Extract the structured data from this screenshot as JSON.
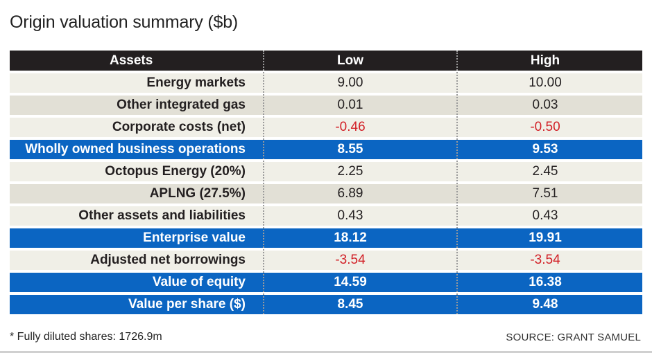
{
  "title": "Origin valuation summary ($b)",
  "chart_data": {
    "type": "table",
    "title": "Origin valuation summary ($b)",
    "columns": [
      "Assets",
      "Low",
      "High"
    ],
    "rows": [
      {
        "label": "Energy markets",
        "low": "9.00",
        "high": "10.00",
        "style": "shade-a"
      },
      {
        "label": "Other integrated gas",
        "low": "0.01",
        "high": "0.03",
        "style": "shade-b"
      },
      {
        "label": "Corporate costs (net)",
        "low": "-0.46",
        "high": "-0.50",
        "style": "shade-a"
      },
      {
        "label": "Wholly owned business operations",
        "low": "8.55",
        "high": "9.53",
        "style": "total"
      },
      {
        "label": "Octopus Energy (20%)",
        "low": "2.25",
        "high": "2.45",
        "style": "shade-a"
      },
      {
        "label": "APLNG (27.5%)",
        "low": "6.89",
        "high": "7.51",
        "style": "shade-b"
      },
      {
        "label": "Other assets and liabilities",
        "low": "0.43",
        "high": "0.43",
        "style": "shade-a"
      },
      {
        "label": "Enterprise value",
        "low": "18.12",
        "high": "19.91",
        "style": "total"
      },
      {
        "label": "Adjusted net borrowings",
        "low": "-3.54",
        "high": "-3.54",
        "style": "shade-a"
      },
      {
        "label": "Value of equity",
        "low": "14.59",
        "high": "16.38",
        "style": "total"
      },
      {
        "label": "Value per share ($)",
        "low": "8.45",
        "high": "9.48",
        "style": "total"
      }
    ],
    "negative_color": "#d21f26",
    "total_row_color": "#0b65c2",
    "header_color": "#231f20"
  },
  "footnote": "* Fully diluted shares: 1726.9m",
  "source": "SOURCE: GRANT SAMUEL"
}
